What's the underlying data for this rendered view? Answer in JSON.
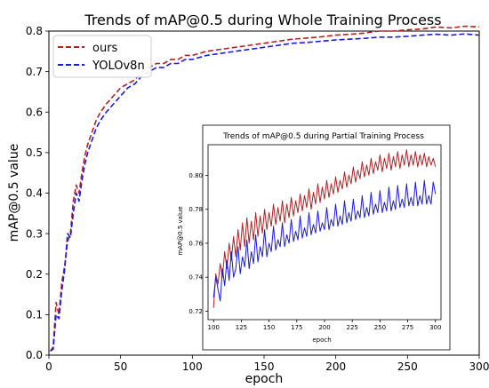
{
  "chart_data": [
    {
      "type": "line",
      "title": "Trends of mAP@0.5 during Whole Training Process",
      "xlabel": "epoch",
      "ylabel": "mAP@0.5 value",
      "xlim": [
        0,
        300
      ],
      "ylim": [
        0,
        0.8
      ],
      "xticks": [
        0,
        50,
        100,
        150,
        200,
        250,
        300
      ],
      "xtick_labels": [
        "0",
        "50",
        "100",
        "150",
        "200",
        "250",
        "300"
      ],
      "yticks": [
        0.0,
        0.1,
        0.2,
        0.3,
        0.4,
        0.5,
        0.6,
        0.7,
        0.8
      ],
      "ytick_labels": [
        "0.0",
        "0.1",
        "0.2",
        "0.3",
        "0.4",
        "0.5",
        "0.6",
        "0.7",
        "0.8"
      ],
      "legend_position": "top-left",
      "grid": false,
      "series": [
        {
          "name": "ours",
          "color": "#b22222",
          "style": "dashed",
          "x": [
            1,
            3,
            5,
            7,
            9,
            11,
            13,
            15,
            17,
            19,
            21,
            23,
            25,
            27,
            30,
            33,
            36,
            40,
            45,
            50,
            55,
            60,
            65,
            70,
            75,
            80,
            85,
            90,
            95,
            100,
            110,
            120,
            130,
            140,
            150,
            160,
            170,
            180,
            190,
            200,
            210,
            220,
            230,
            240,
            250,
            260,
            270,
            280,
            290,
            300
          ],
          "values": [
            0.01,
            0.02,
            0.13,
            0.1,
            0.18,
            0.22,
            0.28,
            0.3,
            0.38,
            0.42,
            0.4,
            0.45,
            0.49,
            0.52,
            0.55,
            0.58,
            0.6,
            0.62,
            0.64,
            0.66,
            0.67,
            0.68,
            0.7,
            0.71,
            0.72,
            0.72,
            0.73,
            0.73,
            0.74,
            0.74,
            0.75,
            0.755,
            0.76,
            0.765,
            0.77,
            0.775,
            0.78,
            0.783,
            0.786,
            0.79,
            0.792,
            0.795,
            0.8,
            0.8,
            0.803,
            0.805,
            0.81,
            0.808,
            0.812,
            0.81
          ]
        },
        {
          "name": "YOLOv8n",
          "color": "#1a1ae6",
          "style": "dashed",
          "x": [
            1,
            3,
            5,
            7,
            9,
            11,
            13,
            15,
            17,
            19,
            21,
            23,
            25,
            27,
            30,
            33,
            36,
            40,
            45,
            50,
            55,
            60,
            65,
            70,
            75,
            80,
            85,
            90,
            95,
            100,
            110,
            120,
            130,
            140,
            150,
            160,
            170,
            180,
            190,
            200,
            210,
            220,
            230,
            240,
            250,
            260,
            270,
            280,
            290,
            300
          ],
          "values": [
            0.01,
            0.015,
            0.1,
            0.09,
            0.16,
            0.21,
            0.3,
            0.29,
            0.35,
            0.4,
            0.38,
            0.43,
            0.47,
            0.5,
            0.53,
            0.56,
            0.58,
            0.6,
            0.62,
            0.64,
            0.66,
            0.67,
            0.69,
            0.7,
            0.71,
            0.71,
            0.72,
            0.72,
            0.73,
            0.73,
            0.74,
            0.745,
            0.75,
            0.755,
            0.76,
            0.765,
            0.77,
            0.772,
            0.775,
            0.778,
            0.78,
            0.782,
            0.785,
            0.785,
            0.787,
            0.79,
            0.792,
            0.79,
            0.793,
            0.79
          ]
        }
      ]
    },
    {
      "type": "line",
      "title": "Trends of mAP@0.5 during Partial Training Process",
      "xlabel": "epoch",
      "ylabel": "mAP@0.5 value",
      "xlim": [
        95,
        305
      ],
      "ylim": [
        0.715,
        0.818
      ],
      "xticks": [
        100,
        125,
        150,
        175,
        200,
        225,
        250,
        275,
        300
      ],
      "xtick_labels": [
        "100",
        "125",
        "150",
        "175",
        "200",
        "225",
        "250",
        "275",
        "300"
      ],
      "yticks": [
        0.72,
        0.74,
        0.76,
        0.78,
        0.8
      ],
      "ytick_labels": [
        "0.72",
        "0.74",
        "0.76",
        "0.78",
        "0.80"
      ],
      "grid": false,
      "series": [
        {
          "color": "#b22222",
          "x": [
            100,
            102,
            104,
            106,
            108,
            110,
            112,
            114,
            116,
            118,
            120,
            122,
            124,
            126,
            128,
            130,
            132,
            134,
            136,
            138,
            140,
            142,
            144,
            146,
            148,
            150,
            152,
            154,
            156,
            158,
            160,
            162,
            164,
            166,
            168,
            170,
            172,
            174,
            176,
            178,
            180,
            182,
            184,
            186,
            188,
            190,
            192,
            194,
            196,
            198,
            200,
            202,
            204,
            206,
            208,
            210,
            212,
            214,
            216,
            218,
            220,
            222,
            224,
            226,
            228,
            230,
            232,
            234,
            236,
            238,
            240,
            242,
            244,
            246,
            248,
            250,
            252,
            254,
            256,
            258,
            260,
            262,
            264,
            266,
            268,
            270,
            272,
            274,
            276,
            278,
            280,
            282,
            284,
            286,
            288,
            290,
            292,
            294,
            296,
            298,
            300
          ],
          "values": [
            0.722,
            0.742,
            0.736,
            0.748,
            0.74,
            0.755,
            0.745,
            0.76,
            0.75,
            0.764,
            0.752,
            0.768,
            0.756,
            0.772,
            0.758,
            0.775,
            0.76,
            0.773,
            0.762,
            0.778,
            0.764,
            0.776,
            0.766,
            0.78,
            0.768,
            0.778,
            0.77,
            0.783,
            0.771,
            0.781,
            0.773,
            0.785,
            0.772,
            0.783,
            0.775,
            0.787,
            0.776,
            0.785,
            0.778,
            0.789,
            0.779,
            0.788,
            0.781,
            0.792,
            0.78,
            0.79,
            0.783,
            0.795,
            0.784,
            0.793,
            0.786,
            0.797,
            0.787,
            0.795,
            0.789,
            0.799,
            0.79,
            0.797,
            0.792,
            0.802,
            0.793,
            0.8,
            0.795,
            0.805,
            0.796,
            0.803,
            0.798,
            0.808,
            0.799,
            0.806,
            0.8,
            0.81,
            0.801,
            0.808,
            0.803,
            0.812,
            0.802,
            0.81,
            0.804,
            0.813,
            0.803,
            0.811,
            0.805,
            0.814,
            0.804,
            0.812,
            0.806,
            0.815,
            0.805,
            0.812,
            0.806,
            0.814,
            0.805,
            0.812,
            0.806,
            0.813,
            0.805,
            0.811,
            0.806,
            0.81,
            0.805
          ]
        },
        {
          "color": "#1a1ae6",
          "x": [
            100,
            102,
            104,
            106,
            108,
            110,
            112,
            114,
            116,
            118,
            120,
            122,
            124,
            126,
            128,
            130,
            132,
            134,
            136,
            138,
            140,
            142,
            144,
            146,
            148,
            150,
            152,
            154,
            156,
            158,
            160,
            162,
            164,
            166,
            168,
            170,
            172,
            174,
            176,
            178,
            180,
            182,
            184,
            186,
            188,
            190,
            192,
            194,
            196,
            198,
            200,
            202,
            204,
            206,
            208,
            210,
            212,
            214,
            216,
            218,
            220,
            222,
            224,
            226,
            228,
            230,
            232,
            234,
            236,
            238,
            240,
            242,
            244,
            246,
            248,
            250,
            252,
            254,
            256,
            258,
            260,
            262,
            264,
            266,
            268,
            270,
            272,
            274,
            276,
            278,
            280,
            282,
            284,
            286,
            288,
            290,
            292,
            294,
            296,
            298,
            300
          ],
          "values": [
            0.728,
            0.74,
            0.733,
            0.726,
            0.745,
            0.735,
            0.75,
            0.738,
            0.755,
            0.74,
            0.745,
            0.758,
            0.742,
            0.752,
            0.746,
            0.762,
            0.745,
            0.755,
            0.748,
            0.765,
            0.749,
            0.758,
            0.752,
            0.768,
            0.752,
            0.76,
            0.755,
            0.77,
            0.756,
            0.762,
            0.758,
            0.772,
            0.758,
            0.765,
            0.76,
            0.774,
            0.761,
            0.767,
            0.762,
            0.776,
            0.763,
            0.769,
            0.764,
            0.778,
            0.765,
            0.771,
            0.766,
            0.779,
            0.767,
            0.772,
            0.768,
            0.781,
            0.768,
            0.774,
            0.77,
            0.783,
            0.77,
            0.776,
            0.771,
            0.785,
            0.772,
            0.778,
            0.773,
            0.786,
            0.774,
            0.779,
            0.775,
            0.788,
            0.775,
            0.781,
            0.776,
            0.79,
            0.777,
            0.783,
            0.778,
            0.791,
            0.778,
            0.784,
            0.779,
            0.793,
            0.779,
            0.785,
            0.78,
            0.794,
            0.781,
            0.786,
            0.781,
            0.795,
            0.782,
            0.787,
            0.782,
            0.796,
            0.782,
            0.788,
            0.783,
            0.797,
            0.783,
            0.788,
            0.783,
            0.796,
            0.789
          ]
        }
      ]
    }
  ]
}
